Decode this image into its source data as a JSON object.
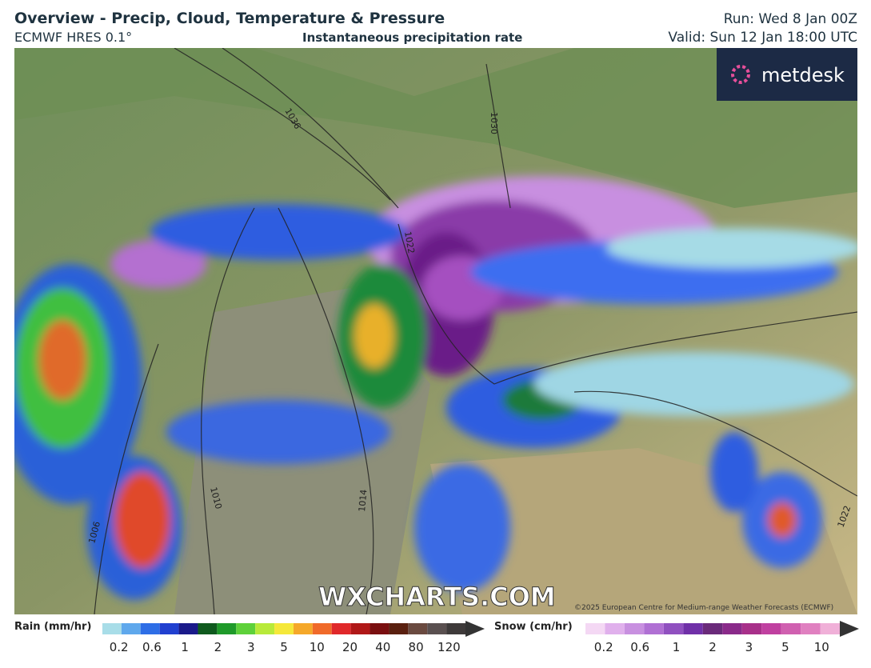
{
  "header": {
    "title": "Overview - Precip, Cloud, Temperature & Pressure",
    "model": "ECMWF HRES 0.1°",
    "subtitle": "Instantaneous precipitation rate",
    "run": "Run: Wed 8 Jan 00Z",
    "valid": "Valid: Sun 12 Jan 18:00 UTC"
  },
  "map": {
    "logo": "metdesk",
    "watermark": "WXCHARTS.COM",
    "copyright": "©2025 European Centre for Medium-range Weather Forecasts (ECMWF)",
    "isobars": [
      "1036",
      "1030",
      "1022",
      "1010",
      "1014",
      "1006",
      "1022"
    ]
  },
  "legend": {
    "rain": {
      "title": "Rain (mm/hr)",
      "labels": [
        "0.2",
        "0.6",
        "1",
        "2",
        "3",
        "5",
        "10",
        "20",
        "40",
        "80",
        "120"
      ]
    },
    "snow": {
      "title": "Snow (cm/hr)",
      "labels": [
        "0.2",
        "0.6",
        "1",
        "2",
        "3",
        "5",
        "10"
      ]
    }
  }
}
